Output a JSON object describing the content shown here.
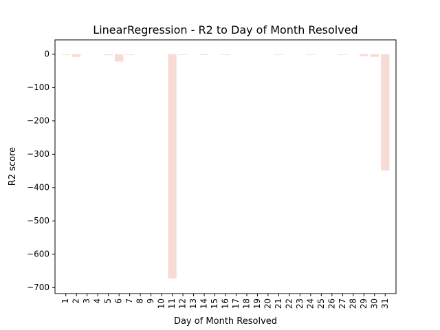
{
  "chart_data": {
    "type": "bar",
    "title": "LinearRegression - R2 to Day of Month Resolved",
    "xlabel": "Day of Month Resolved",
    "ylabel": "R2 score",
    "categories": [
      "1",
      "2",
      "3",
      "4",
      "5",
      "6",
      "7",
      "8",
      "9",
      "10",
      "11",
      "12",
      "13",
      "14",
      "15",
      "16",
      "17",
      "18",
      "19",
      "20",
      "21",
      "22",
      "23",
      "24",
      "25",
      "26",
      "27",
      "28",
      "29",
      "30",
      "31"
    ],
    "values": [
      -1,
      -8,
      0,
      0,
      -3,
      -22,
      -1,
      0,
      0,
      0,
      -673,
      -2,
      0,
      -1,
      0,
      -2,
      0,
      0,
      0,
      0,
      -1,
      0,
      0,
      -1,
      0,
      0,
      -1,
      0,
      -6,
      -8,
      -349
    ],
    "ylim": [
      -718,
      43
    ],
    "yticks": [
      0,
      -100,
      -200,
      -300,
      -400,
      -500,
      -600,
      -700
    ],
    "ytick_labels": [
      "0",
      "−100",
      "−200",
      "−300",
      "−400",
      "−500",
      "−600",
      "−700"
    ],
    "bar_color": "#f9dbd5",
    "grid": false,
    "legend": "none"
  }
}
